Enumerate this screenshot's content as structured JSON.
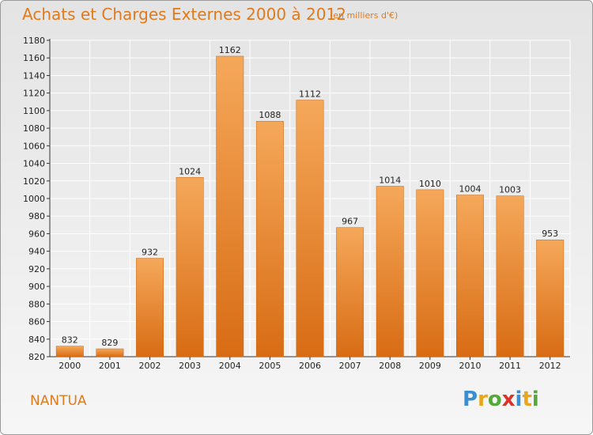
{
  "header": {
    "title": "Achats et Charges Externes 2000 à 2012",
    "subtitle": "(en milliers d'€)"
  },
  "footer": {
    "city": "NANTUA",
    "logo_text": "Proxiti"
  },
  "colors": {
    "title": "#e07a1c",
    "bar_top": "#f5a85a",
    "bar_bottom": "#d86c14"
  },
  "chart_data": {
    "type": "bar",
    "title": "Achats et Charges Externes 2000 à 2012",
    "subtitle": "(en milliers d'€)",
    "xlabel": "",
    "ylabel": "",
    "categories": [
      "2000",
      "2001",
      "2002",
      "2003",
      "2004",
      "2005",
      "2006",
      "2007",
      "2008",
      "2009",
      "2010",
      "2011",
      "2012"
    ],
    "values": [
      832,
      829,
      932,
      1024,
      1162,
      1088,
      1112,
      967,
      1014,
      1010,
      1004,
      1003,
      953
    ],
    "ylim": [
      820,
      1180
    ],
    "yticks": [
      820,
      840,
      860,
      880,
      900,
      920,
      940,
      960,
      980,
      1000,
      1020,
      1040,
      1060,
      1080,
      1100,
      1120,
      1140,
      1160,
      1180
    ],
    "grid": true
  }
}
